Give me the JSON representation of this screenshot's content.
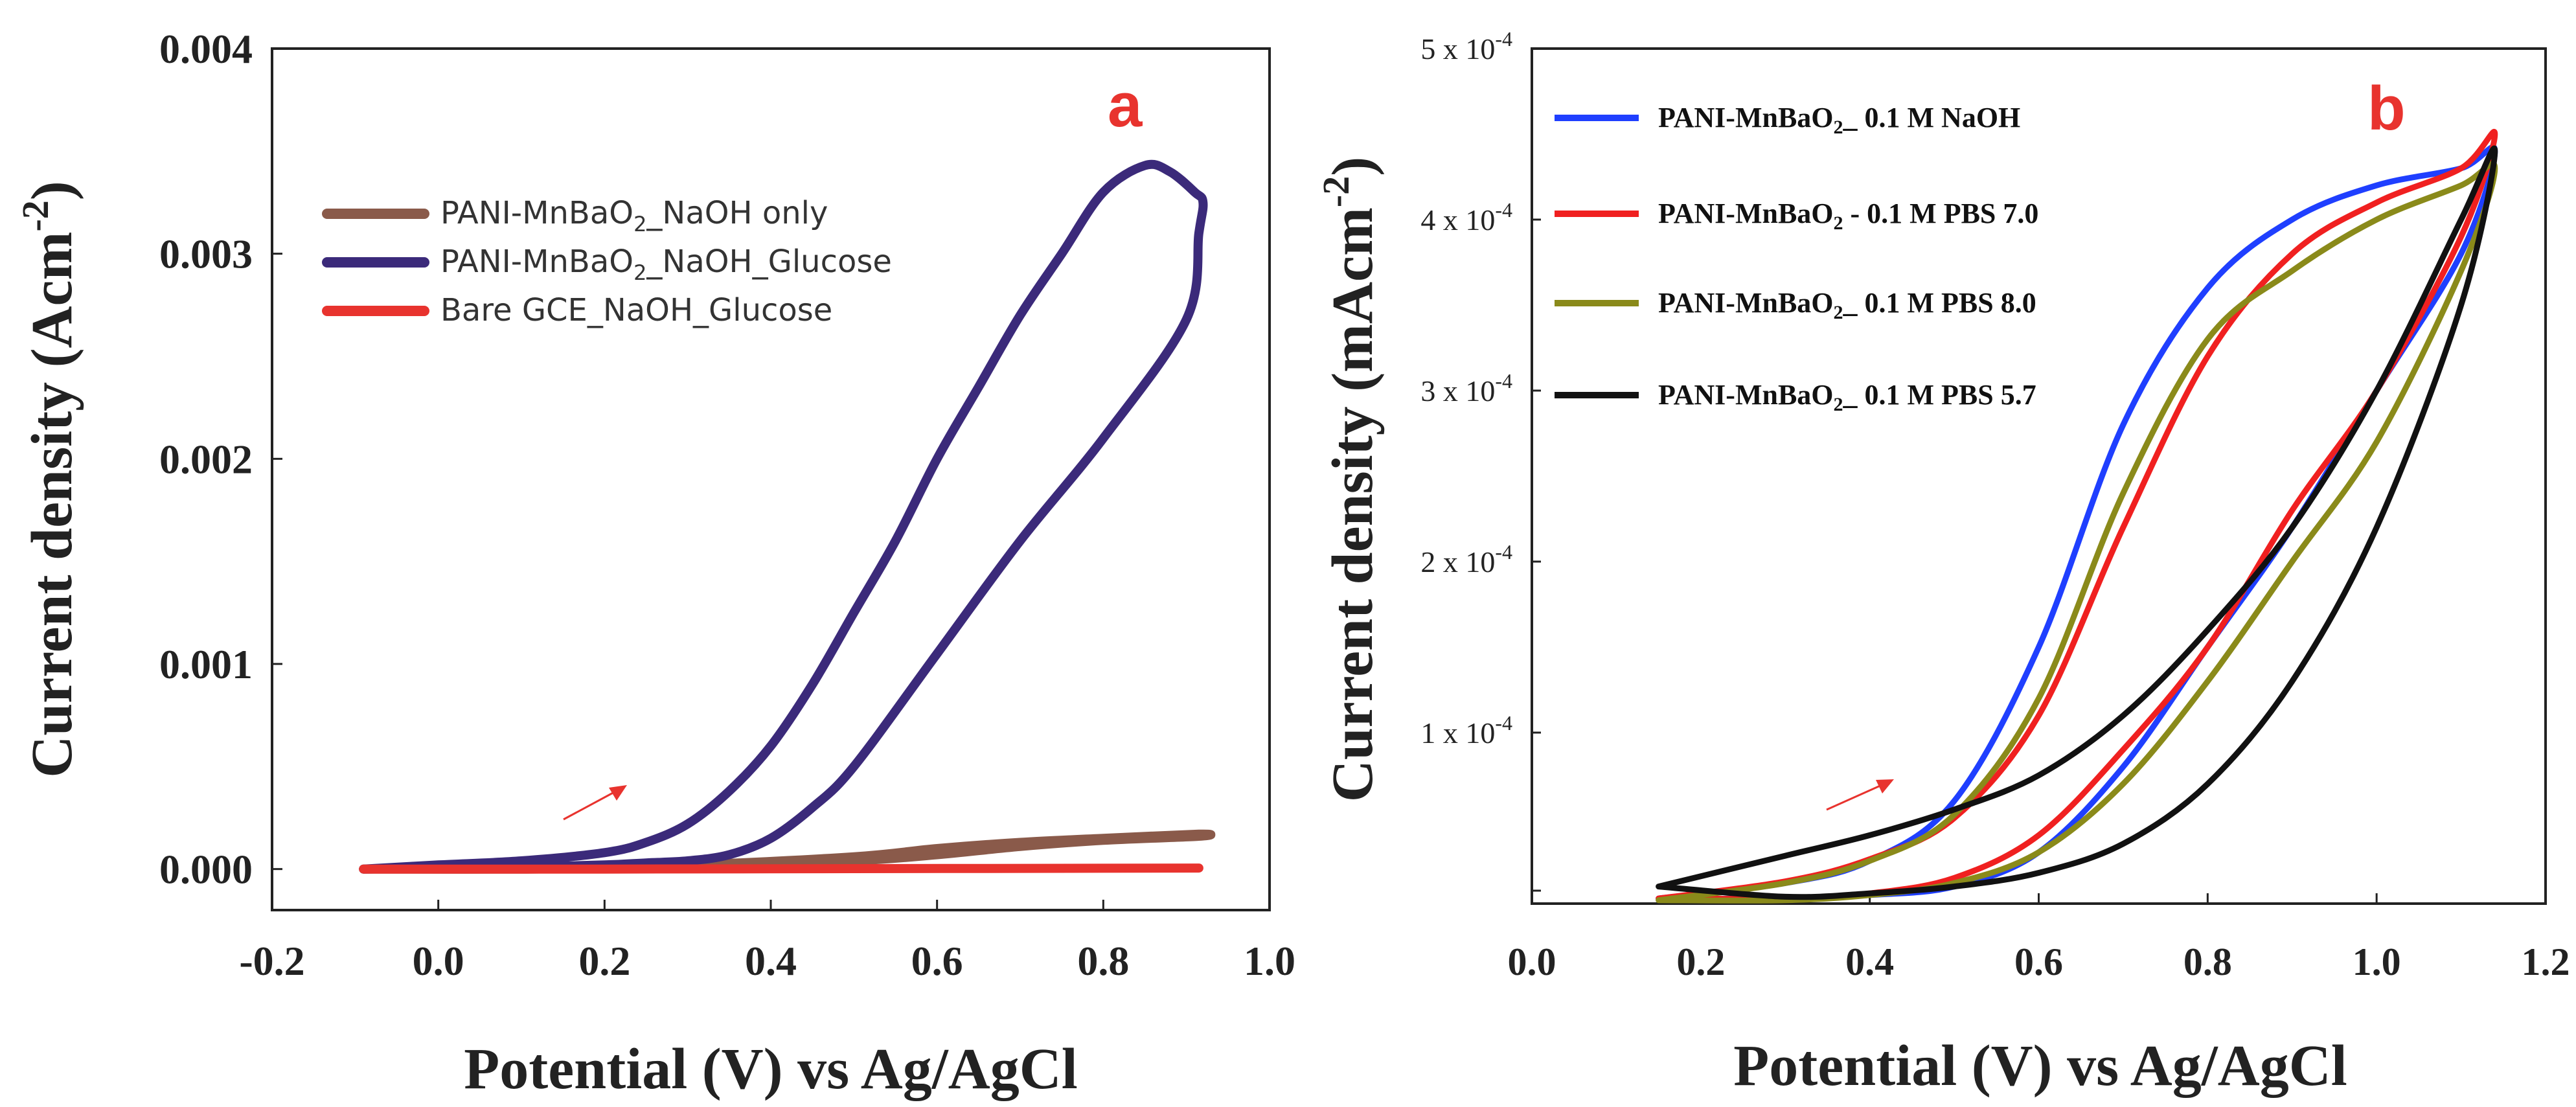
{
  "chart_data": [
    {
      "type": "line",
      "panel_label": "a",
      "xlabel": "Potential (V) vs Ag/AgCl",
      "ylabel": "Current density (Acm-2)",
      "ylabel_parts": {
        "base": "Current density (Acm",
        "sup": "-2",
        "end": ")"
      },
      "xlim": [
        -0.2,
        1.0
      ],
      "ylim": [
        -0.0002,
        0.004
      ],
      "x_ticks": [
        "-0.2",
        "0.0",
        "0.2",
        "0.4",
        "0.6",
        "0.8",
        "1.0"
      ],
      "y_ticks": [
        "0.000",
        "0.001",
        "0.002",
        "0.003",
        "0.004"
      ],
      "legend_position": "upper-left",
      "series": [
        {
          "name": "PANI-MnBaO2_NaOH only",
          "name_parts": {
            "pre": "PANI-MnBaO",
            "sub": "2",
            "post": "_NaOH only"
          },
          "color": "#8a5a4a",
          "x": [
            -0.09,
            0.1,
            0.3,
            0.5,
            0.6,
            0.7,
            0.8,
            0.915,
            0.915,
            0.8,
            0.7,
            0.6,
            0.5,
            0.3,
            0.1,
            -0.09
          ],
          "y": [
            0.0,
            5e-06,
            2e-05,
            6e-05,
            0.0001,
            0.00013,
            0.00015,
            0.00017,
            0.00016,
            0.00014,
            0.00011,
            7e-05,
            4e-05,
            1e-05,
            0.0,
            0.0
          ]
        },
        {
          "name": "PANI-MnBaO2_NaOH_Glucose",
          "name_parts": {
            "pre": "PANI-MnBaO",
            "sub": "2",
            "post": "_NaOH_Glucose"
          },
          "color": "#3b2a7a",
          "x": [
            -0.09,
            0.0,
            0.1,
            0.2,
            0.25,
            0.3,
            0.35,
            0.4,
            0.45,
            0.5,
            0.55,
            0.6,
            0.65,
            0.7,
            0.75,
            0.8,
            0.85,
            0.88,
            0.91,
            0.92,
            0.915,
            0.9,
            0.8,
            0.7,
            0.6,
            0.5,
            0.45,
            0.4,
            0.35,
            0.3,
            0.25,
            0.2,
            0.1,
            0.0,
            -0.09
          ],
          "y": [
            0.0,
            2e-05,
            4e-05,
            8e-05,
            0.00013,
            0.00022,
            0.00038,
            0.0006,
            0.0009,
            0.00125,
            0.0016,
            0.002,
            0.00235,
            0.0027,
            0.003,
            0.0033,
            0.00343,
            0.0034,
            0.0033,
            0.00325,
            0.0031,
            0.00268,
            0.0021,
            0.0016,
            0.00105,
            0.0005,
            0.0003,
            0.00015,
            7e-05,
            4e-05,
            3e-05,
            2e-05,
            1e-05,
            5e-06,
            0.0
          ]
        },
        {
          "name": "Bare GCE_NaOH_Glucose",
          "name_parts": {
            "pre": "Bare GCE_NaOH_Glucose",
            "sub": "",
            "post": ""
          },
          "color": "#e8332e",
          "x": [
            -0.09,
            0.2,
            0.5,
            0.8,
            0.915
          ],
          "y": [
            0.0,
            0.0,
            2e-06,
            4e-06,
            5e-06
          ]
        }
      ]
    },
    {
      "type": "line",
      "panel_label": "b",
      "xlabel": "Potential (V) vs Ag/AgCl",
      "ylabel": "Current density (mAcm-2)",
      "ylabel_parts": {
        "base": "Current density (mAcm",
        "sup": "-2",
        "end": ")"
      },
      "xlim": [
        0.0,
        1.2
      ],
      "ylim": [
        0.0,
        0.0005
      ],
      "x_ticks": [
        "0.0",
        "0.2",
        "0.4",
        "0.6",
        "0.8",
        "1.0",
        "1.2"
      ],
      "y_ticks": [
        {
          "value": 0.0001,
          "mantissa": "1 x 10",
          "exp": "-4"
        },
        {
          "value": 0.0002,
          "mantissa": "2 x 10",
          "exp": "-4"
        },
        {
          "value": 0.0003,
          "mantissa": "3 x 10",
          "exp": "-4"
        },
        {
          "value": 0.0004,
          "mantissa": "4 x 10",
          "exp": "-4"
        },
        {
          "value": 0.0005,
          "mantissa": "5 x 10",
          "exp": "-4"
        }
      ],
      "legend_position": "upper-left",
      "series": [
        {
          "name": "PANI-MnBaO2_ 0.1 M NaOH",
          "name_parts": {
            "pre": "PANI-MnBaO",
            "sub": "2",
            "post": "_ 0.1 M NaOH"
          },
          "color": "#1f3fff",
          "x": [
            0.15,
            0.3,
            0.4,
            0.5,
            0.6,
            0.7,
            0.8,
            0.9,
            1.0,
            1.1,
            1.14,
            1.1,
            1.0,
            0.9,
            0.8,
            0.7,
            0.6,
            0.5,
            0.4,
            0.3,
            0.15
          ],
          "y": [
            3e-06,
            1.2e-05,
            2.5e-05,
            6e-05,
            0.00015,
            0.00028,
            0.00036,
            0.0004,
            0.00042,
            0.00043,
            0.00044,
            0.00038,
            0.0003,
            0.00022,
            0.00015,
            8e-05,
            3e-05,
            1e-05,
            5e-06,
            3e-06,
            3e-06
          ]
        },
        {
          "name": "PANI-MnBaO2 - 0.1 M PBS 7.0",
          "name_parts": {
            "pre": "PANI-MnBaO",
            "sub": "2",
            "post": " - 0.1 M PBS 7.0"
          },
          "color": "#f02020",
          "x": [
            0.15,
            0.3,
            0.4,
            0.5,
            0.6,
            0.7,
            0.8,
            0.9,
            1.0,
            1.1,
            1.14,
            1.1,
            1.0,
            0.9,
            0.8,
            0.7,
            0.6,
            0.5,
            0.4,
            0.3,
            0.15
          ],
          "y": [
            3e-06,
            1.3e-05,
            2.6e-05,
            5e-05,
            0.00011,
            0.00022,
            0.00032,
            0.00038,
            0.00041,
            0.00043,
            0.00045,
            0.00039,
            0.0003,
            0.00023,
            0.00015,
            9e-05,
            4e-05,
            1.5e-05,
            6e-06,
            3e-06,
            3e-06
          ]
        },
        {
          "name": "PANI-MnBaO2_ 0.1 M PBS 8.0",
          "name_parts": {
            "pre": "PANI-MnBaO",
            "sub": "2",
            "post": "_ 0.1 M PBS 8.0"
          },
          "color": "#8a8a1a",
          "x": [
            0.15,
            0.3,
            0.4,
            0.5,
            0.6,
            0.7,
            0.8,
            0.9,
            1.0,
            1.1,
            1.14,
            1.1,
            1.0,
            0.9,
            0.8,
            0.7,
            0.6,
            0.5,
            0.4,
            0.3,
            0.15
          ],
          "y": [
            2e-06,
            1.2e-05,
            2.5e-05,
            5.2e-05,
            0.00012,
            0.00024,
            0.00033,
            0.00037,
            0.0004,
            0.00042,
            0.00043,
            0.00037,
            0.00027,
            0.0002,
            0.00013,
            7e-05,
            3e-05,
            1.2e-05,
            5e-06,
            2e-06,
            2e-06
          ]
        },
        {
          "name": "PANI-MnBaO2_ 0.1 M PBS 5.7",
          "name_parts": {
            "pre": "PANI-MnBaO",
            "sub": "2",
            "post": "_ 0.1 M PBS 5.7"
          },
          "color": "#111111",
          "x": [
            0.15,
            0.3,
            0.4,
            0.5,
            0.6,
            0.7,
            0.8,
            0.9,
            1.0,
            1.1,
            1.14,
            1.1,
            1.0,
            0.9,
            0.8,
            0.7,
            0.6,
            0.5,
            0.4,
            0.3,
            0.15
          ],
          "y": [
            1e-05,
            2.8e-05,
            4e-05,
            5.5e-05,
            7.5e-05,
            0.00011,
            0.00016,
            0.00022,
            0.0003,
            0.0004,
            0.00044,
            0.00035,
            0.00022,
            0.00013,
            7e-05,
            3.5e-05,
            1.8e-05,
            1e-05,
            6e-06,
            4e-06,
            1e-05
          ]
        }
      ]
    }
  ]
}
